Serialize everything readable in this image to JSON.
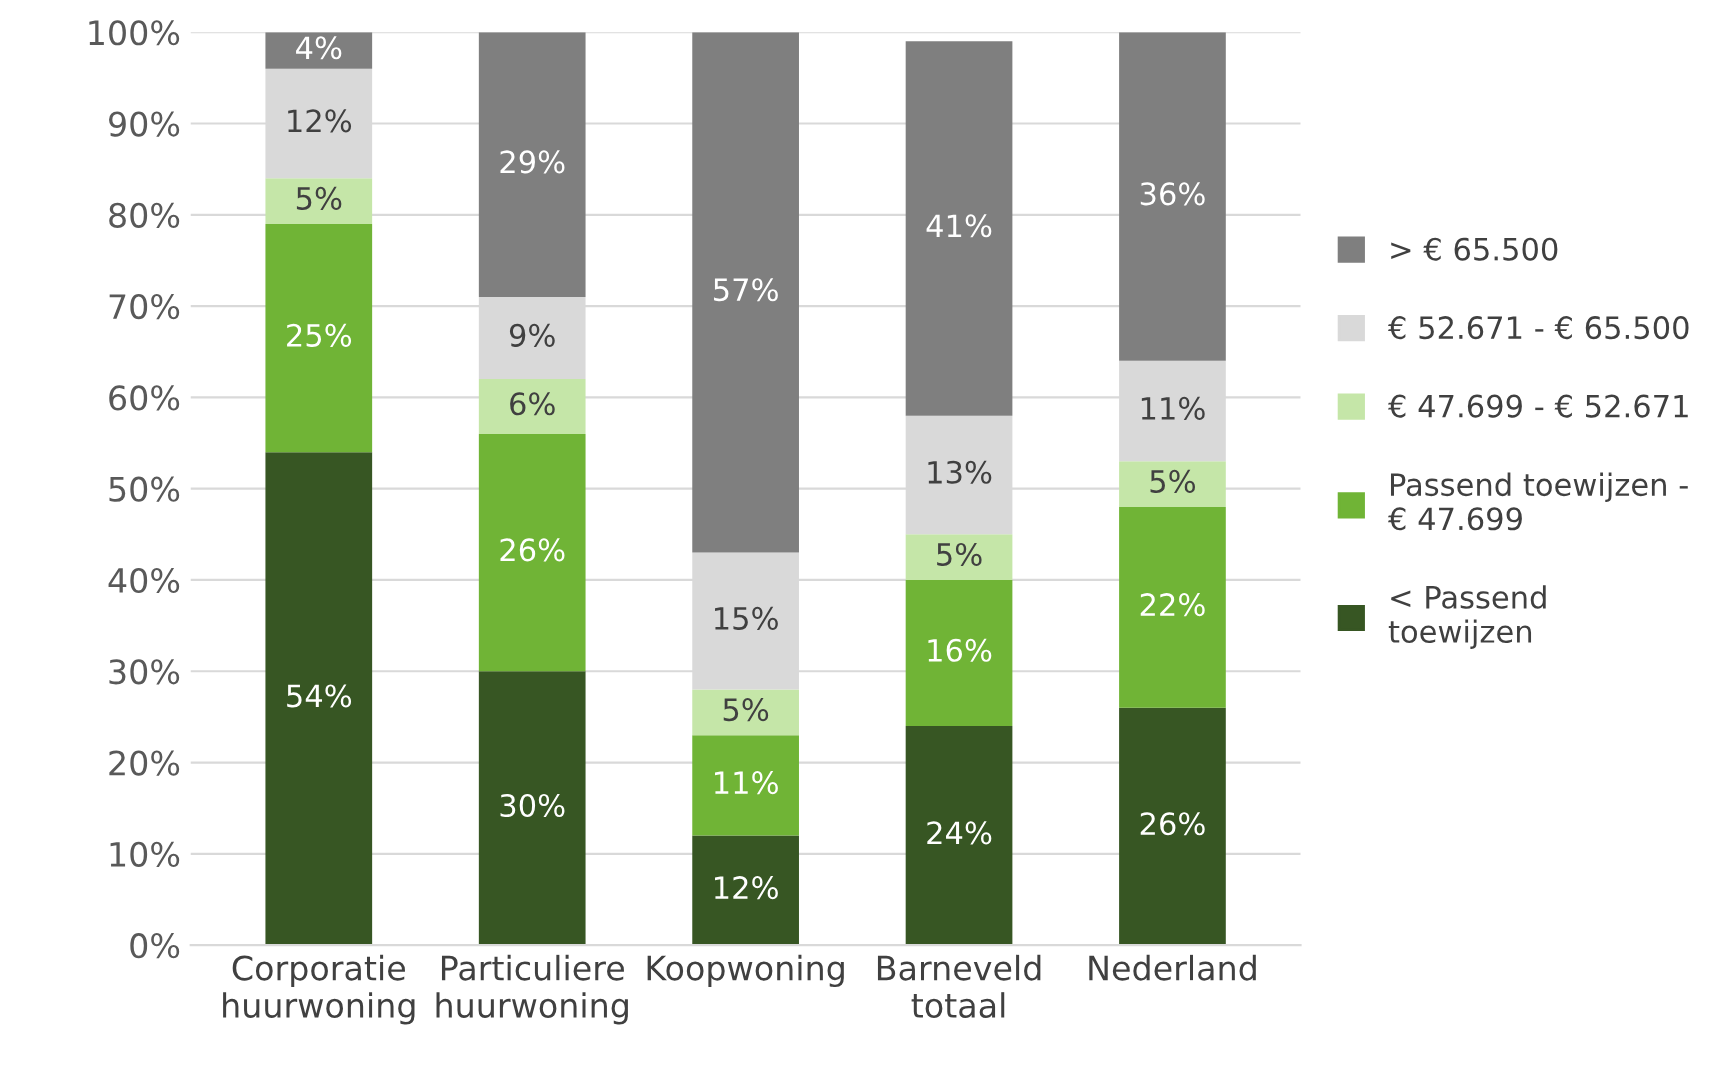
{
  "chart_data": {
    "type": "bar",
    "stacked": true,
    "categories": [
      "Corporatie\nhuurwoning",
      "Particuliere\nhuurwoning",
      "Koopwoning",
      "Barneveld\ntotaal",
      "Nederland"
    ],
    "series": [
      {
        "name": "< Passend\ntoewijzen",
        "color": "#375623",
        "values": [
          54,
          30,
          12,
          24,
          26
        ],
        "value_labels": [
          "54%",
          "30%",
          "12%",
          "24%",
          "26%"
        ]
      },
      {
        "name": "Passend toewijzen -\n€ 47.699",
        "color": "#70b436",
        "values": [
          25,
          26,
          11,
          16,
          22
        ],
        "value_labels": [
          "25%",
          "26%",
          "11%",
          "16%",
          "22%"
        ]
      },
      {
        "name": "€ 47.699 - € 52.671",
        "color": "#c5e6a8",
        "values": [
          5,
          6,
          5,
          5,
          5
        ],
        "value_labels": [
          "5%",
          "6%",
          "5%",
          "5%",
          "5%"
        ]
      },
      {
        "name": "€ 52.671 - € 65.500",
        "color": "#d9d9d9",
        "values": [
          12,
          9,
          15,
          13,
          11
        ],
        "value_labels": [
          "12%",
          "9%",
          "15%",
          "13%",
          "11%"
        ]
      },
      {
        "name": "> € 65.500",
        "color": "#7f7f7f",
        "values": [
          4,
          29,
          57,
          41,
          36
        ],
        "value_labels": [
          "4%",
          "29%",
          "57%",
          "41%",
          "36%"
        ]
      }
    ],
    "ylim": [
      0,
      100
    ],
    "yticks": [
      {
        "value": 0,
        "label": "0%"
      },
      {
        "value": 10,
        "label": "10%"
      },
      {
        "value": 20,
        "label": "20%"
      },
      {
        "value": 30,
        "label": "30%"
      },
      {
        "value": 40,
        "label": "40%"
      },
      {
        "value": 50,
        "label": "50%"
      },
      {
        "value": 60,
        "label": "60%"
      },
      {
        "value": 70,
        "label": "70%"
      },
      {
        "value": 80,
        "label": "80%"
      },
      {
        "value": 90,
        "label": "90%"
      },
      {
        "value": 100,
        "label": "100%"
      }
    ],
    "grid": "y",
    "legend": "right"
  }
}
